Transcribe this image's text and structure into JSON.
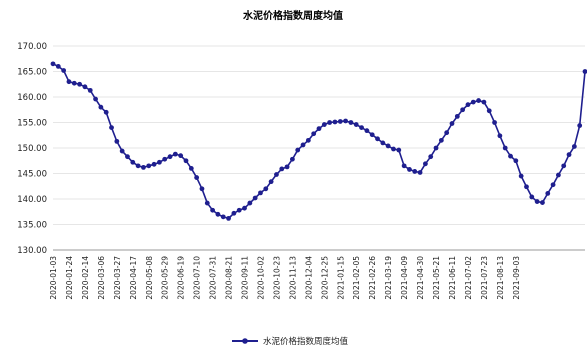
{
  "chart_data": {
    "type": "line",
    "title": "水泥价格指数周度均值",
    "xlabel": "",
    "ylabel": "",
    "ylim": [
      130,
      170
    ],
    "yticks": [
      "170.00",
      "165.00",
      "160.00",
      "155.00",
      "150.00",
      "145.00",
      "140.00",
      "135.00",
      "130.00"
    ],
    "xtick_labels": [
      "2020-01-03",
      "2020-01-24",
      "2020-02-14",
      "2020-03-06",
      "2020-03-27",
      "2020-04-17",
      "2020-05-08",
      "2020-05-29",
      "2020-06-19",
      "2020-07-10",
      "2020-07-31",
      "2020-08-21",
      "2020-09-11",
      "2020-10-02",
      "2020-10-23",
      "2020-11-13",
      "2020-12-04",
      "2020-12-25",
      "2021-01-15",
      "2021-02-05",
      "2021-02-26",
      "2021-03-19",
      "2021-04-09",
      "2021-04-30",
      "2021-05-21",
      "2021-06-11",
      "2021-07-02",
      "2021-07-23",
      "2021-08-13",
      "2021-09-03"
    ],
    "legend_position": "bottom",
    "series": [
      {
        "name": "水泥价格指数周度均值",
        "color": "#1f1f8f",
        "values": [
          166.5,
          166.0,
          165.2,
          163.0,
          162.7,
          162.5,
          162.0,
          161.3,
          159.6,
          158.0,
          157.0,
          154.0,
          151.3,
          149.4,
          148.3,
          147.2,
          146.5,
          146.2,
          146.5,
          146.8,
          147.2,
          147.8,
          148.3,
          148.8,
          148.5,
          147.5,
          146.0,
          144.2,
          142.0,
          139.2,
          137.8,
          137.0,
          136.5,
          136.2,
          137.2,
          137.8,
          138.2,
          139.2,
          140.2,
          141.2,
          142.0,
          143.4,
          144.8,
          145.9,
          146.3,
          147.8,
          149.6,
          150.6,
          151.5,
          152.8,
          153.8,
          154.6,
          155.0,
          155.1,
          155.2,
          155.3,
          155.0,
          154.6,
          154.0,
          153.4,
          152.6,
          151.8,
          151.0,
          150.4,
          149.8,
          149.6,
          146.5,
          145.8,
          145.4,
          145.2,
          146.9,
          148.3,
          150.0,
          151.5,
          153.0,
          154.8,
          156.2,
          157.5,
          158.5,
          159.0,
          159.3,
          159.0,
          157.3,
          155.0,
          152.4,
          150.0,
          148.4,
          147.5,
          144.5,
          142.4,
          140.4,
          139.5,
          139.3,
          141.1,
          142.8,
          144.7,
          146.5,
          148.7,
          150.3,
          154.4,
          165.0
        ]
      }
    ]
  }
}
